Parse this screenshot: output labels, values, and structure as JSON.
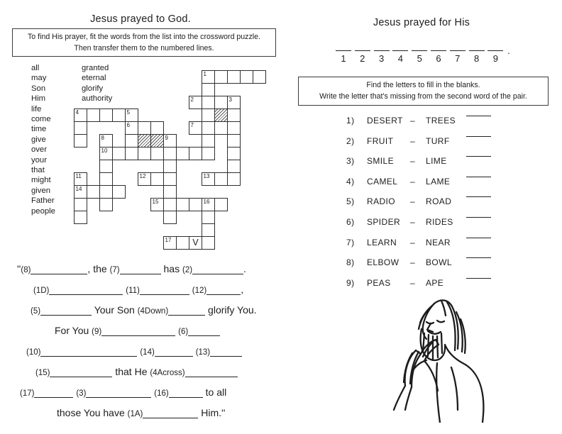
{
  "left": {
    "title": "Jesus prayed to God.",
    "instructions": [
      "To find His prayer, fit the words from the list into the crossword puzzle.",
      "Then transfer them to the numbered lines."
    ],
    "word_list_col1": [
      "all",
      "may",
      "Son",
      "Him",
      "life",
      "come",
      "time",
      "give",
      "over",
      "your",
      "that",
      "might",
      "given",
      "Father",
      "people"
    ],
    "word_list_col2": [
      "granted",
      "eternal",
      "glorify",
      "authority"
    ],
    "crossword": {
      "prefilled_letter": "V",
      "cells": [
        {
          "c": 11,
          "r": 1,
          "n": "1"
        },
        {
          "c": 12,
          "r": 1
        },
        {
          "c": 13,
          "r": 1
        },
        {
          "c": 14,
          "r": 1
        },
        {
          "c": 15,
          "r": 1
        },
        {
          "c": 11,
          "r": 2
        },
        {
          "c": 10,
          "r": 3,
          "n": "2"
        },
        {
          "c": 11,
          "r": 3
        },
        {
          "c": 12,
          "r": 3
        },
        {
          "c": 13,
          "r": 3,
          "n": "3"
        },
        {
          "c": 1,
          "r": 4,
          "n": "4"
        },
        {
          "c": 2,
          "r": 4
        },
        {
          "c": 3,
          "r": 4
        },
        {
          "c": 4,
          "r": 4
        },
        {
          "c": 5,
          "r": 4,
          "n": "5"
        },
        {
          "c": 11,
          "r": 4
        },
        {
          "c": 12,
          "r": 4,
          "h": true
        },
        {
          "c": 13,
          "r": 4
        },
        {
          "c": 1,
          "r": 5
        },
        {
          "c": 5,
          "r": 5,
          "n": "6"
        },
        {
          "c": 6,
          "r": 5
        },
        {
          "c": 7,
          "r": 5
        },
        {
          "c": 10,
          "r": 5,
          "n": "7"
        },
        {
          "c": 11,
          "r": 5
        },
        {
          "c": 12,
          "r": 5
        },
        {
          "c": 13,
          "r": 5
        },
        {
          "c": 1,
          "r": 6
        },
        {
          "c": 3,
          "r": 6,
          "n": "8"
        },
        {
          "c": 5,
          "r": 6
        },
        {
          "c": 6,
          "r": 6,
          "h": true
        },
        {
          "c": 7,
          "r": 6,
          "h": true
        },
        {
          "c": 8,
          "r": 6,
          "n": "9"
        },
        {
          "c": 11,
          "r": 6
        },
        {
          "c": 13,
          "r": 6
        },
        {
          "c": 3,
          "r": 7,
          "n": "10"
        },
        {
          "c": 4,
          "r": 7
        },
        {
          "c": 5,
          "r": 7
        },
        {
          "c": 6,
          "r": 7
        },
        {
          "c": 7,
          "r": 7
        },
        {
          "c": 8,
          "r": 7
        },
        {
          "c": 9,
          "r": 7
        },
        {
          "c": 10,
          "r": 7
        },
        {
          "c": 11,
          "r": 7
        },
        {
          "c": 13,
          "r": 7
        },
        {
          "c": 3,
          "r": 8
        },
        {
          "c": 8,
          "r": 8
        },
        {
          "c": 13,
          "r": 8
        },
        {
          "c": 1,
          "r": 9,
          "n": "11"
        },
        {
          "c": 3,
          "r": 9
        },
        {
          "c": 6,
          "r": 9,
          "n": "12"
        },
        {
          "c": 7,
          "r": 9
        },
        {
          "c": 8,
          "r": 9
        },
        {
          "c": 11,
          "r": 9,
          "n": "13"
        },
        {
          "c": 12,
          "r": 9
        },
        {
          "c": 13,
          "r": 9
        },
        {
          "c": 1,
          "r": 10,
          "n": "14"
        },
        {
          "c": 2,
          "r": 10
        },
        {
          "c": 3,
          "r": 10
        },
        {
          "c": 4,
          "r": 10
        },
        {
          "c": 8,
          "r": 10
        },
        {
          "c": 1,
          "r": 11
        },
        {
          "c": 3,
          "r": 11
        },
        {
          "c": 7,
          "r": 11,
          "n": "15"
        },
        {
          "c": 8,
          "r": 11
        },
        {
          "c": 9,
          "r": 11
        },
        {
          "c": 10,
          "r": 11
        },
        {
          "c": 11,
          "r": 11,
          "n": "16"
        },
        {
          "c": 12,
          "r": 11
        },
        {
          "c": 1,
          "r": 12
        },
        {
          "c": 8,
          "r": 12
        },
        {
          "c": 11,
          "r": 12
        },
        {
          "c": 11,
          "r": 13
        },
        {
          "c": 8,
          "r": 14,
          "n": "17"
        },
        {
          "c": 9,
          "r": 14
        },
        {
          "c": 10,
          "r": 14,
          "l": "V"
        },
        {
          "c": 11,
          "r": 14
        }
      ]
    },
    "prayer_lines": [
      [
        {
          "t": "''"
        },
        {
          "n": "(8)"
        },
        {
          "b": 80
        },
        {
          "t": ", the "
        },
        {
          "n": "(7)"
        },
        {
          "b": 58
        },
        {
          "t": " has "
        },
        {
          "n": "(2)"
        },
        {
          "b": 72
        },
        {
          "t": "."
        }
      ],
      [
        {
          "n": "(1D)"
        },
        {
          "b": 104
        },
        {
          "t": " "
        },
        {
          "n": "(11)"
        },
        {
          "b": 70
        },
        {
          "t": " "
        },
        {
          "n": "(12)"
        },
        {
          "b": 48
        },
        {
          "t": ","
        }
      ],
      [
        {
          "n": "(5)"
        },
        {
          "b": 72
        },
        {
          "t": " Your Son "
        },
        {
          "n": "(4Down)"
        },
        {
          "b": 52
        },
        {
          "t": " glorify You."
        }
      ],
      [
        {
          "t": "For You "
        },
        {
          "n": "(9)"
        },
        {
          "b": 104
        },
        {
          "t": " "
        },
        {
          "n": "(6)"
        },
        {
          "b": 45
        }
      ],
      [
        {
          "n": "(10)"
        },
        {
          "b": 136
        },
        {
          "t": " "
        },
        {
          "n": "(14)"
        },
        {
          "b": 54
        },
        {
          "t": " "
        },
        {
          "n": "(13)"
        },
        {
          "b": 45
        }
      ],
      [
        {
          "n": "(15)"
        },
        {
          "b": 88
        },
        {
          "t": " that He "
        },
        {
          "n": "(4Across)"
        },
        {
          "b": 74
        }
      ],
      [
        {
          "n": "(17)"
        },
        {
          "b": 55
        },
        {
          "t": " "
        },
        {
          "n": "(3)"
        },
        {
          "b": 92
        },
        {
          "t": " "
        },
        {
          "n": "(16)"
        },
        {
          "b": 48
        },
        {
          "t": " to all"
        }
      ],
      [
        {
          "t": "those You have "
        },
        {
          "n": "(1A)"
        },
        {
          "b": 78
        },
        {
          "t": " Him.''"
        }
      ]
    ]
  },
  "right": {
    "title": "Jesus prayed for His",
    "answer_numbers": [
      "1",
      "2",
      "3",
      "4",
      "5",
      "6",
      "7",
      "8",
      "9"
    ],
    "end_punct": ".",
    "instructions": [
      "Find the letters to fill in the blanks.",
      "Write the letter that's missing from the second word of the pair."
    ],
    "dash": "–",
    "pairs": [
      {
        "num": "1)",
        "first": "DESERT",
        "second": "TREES"
      },
      {
        "num": "2)",
        "first": "FRUIT",
        "second": "TURF"
      },
      {
        "num": "3)",
        "first": "SMILE",
        "second": "LIME"
      },
      {
        "num": "4)",
        "first": "CAMEL",
        "second": "LAME"
      },
      {
        "num": "5)",
        "first": "RADIO",
        "second": "ROAD"
      },
      {
        "num": "6)",
        "first": "SPIDER",
        "second": "RIDES"
      },
      {
        "num": "7)",
        "first": "LEARN",
        "second": "NEAR"
      },
      {
        "num": "8)",
        "first": "ELBOW",
        "second": "BOWL"
      },
      {
        "num": "9)",
        "first": "PEAS",
        "second": "APE"
      }
    ],
    "figure": "praying-man-line-drawing"
  }
}
